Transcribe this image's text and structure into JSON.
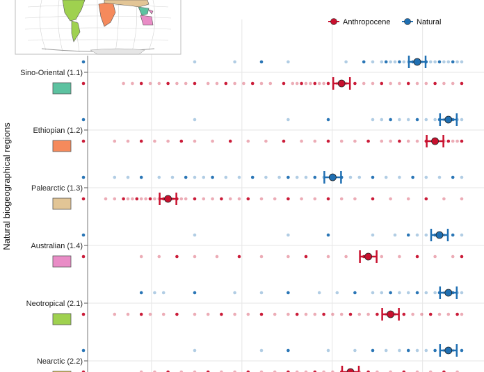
{
  "chart_data": {
    "type": "scatter",
    "ylabel": "Natural biogeographical regions",
    "grid": true,
    "x_tick_labels_visible": false,
    "legend": {
      "placement": "top-right",
      "entries": [
        {
          "name": "Anthropocene",
          "color": "#c8102e"
        },
        {
          "name": "Natural",
          "color": "#1f6fb2"
        }
      ]
    },
    "regions": [
      {
        "label": "Sino-Oriental (1.1)",
        "swatch_color": "#5cc2a0",
        "natural_mean": 0.8,
        "anthropocene_mean": 0.63,
        "natural_points": [
          0.05,
          0.3,
          0.39,
          0.45,
          0.51,
          0.64,
          0.68,
          0.7,
          0.72,
          0.73,
          0.74,
          0.75,
          0.76,
          0.77,
          0.78,
          0.79,
          0.8,
          0.81,
          0.82,
          0.83,
          0.84,
          0.85,
          0.86,
          0.87,
          0.88,
          0.89,
          0.9
        ],
        "anthropocene_points": [
          0.05,
          0.14,
          0.16,
          0.18,
          0.2,
          0.22,
          0.24,
          0.26,
          0.28,
          0.3,
          0.33,
          0.35,
          0.37,
          0.39,
          0.41,
          0.43,
          0.45,
          0.47,
          0.5,
          0.52,
          0.53,
          0.54,
          0.55,
          0.56,
          0.57,
          0.58,
          0.59,
          0.6,
          0.62,
          0.64,
          0.66,
          0.68,
          0.7,
          0.72,
          0.74,
          0.76,
          0.78,
          0.8,
          0.82,
          0.84,
          0.86,
          0.88,
          0.9
        ]
      },
      {
        "label": "Ethiopian (1.2)",
        "swatch_color": "#f58a5c",
        "natural_mean": 0.87,
        "anthropocene_mean": 0.84,
        "natural_points": [
          0.05,
          0.3,
          0.51,
          0.6,
          0.7,
          0.72,
          0.74,
          0.76,
          0.78,
          0.8,
          0.82,
          0.84,
          0.85,
          0.86,
          0.87,
          0.88,
          0.89,
          0.9
        ],
        "anthropocene_points": [
          0.05,
          0.12,
          0.15,
          0.18,
          0.21,
          0.24,
          0.27,
          0.3,
          0.34,
          0.38,
          0.42,
          0.46,
          0.5,
          0.54,
          0.57,
          0.6,
          0.63,
          0.66,
          0.69,
          0.72,
          0.74,
          0.76,
          0.78,
          0.8,
          0.82,
          0.84,
          0.86,
          0.87,
          0.88,
          0.89,
          0.9
        ]
      },
      {
        "label": "Palearctic (1.3)",
        "swatch_color": "#e2c596",
        "natural_mean": 0.61,
        "anthropocene_mean": 0.24,
        "natural_points": [
          0.05,
          0.12,
          0.15,
          0.18,
          0.22,
          0.25,
          0.28,
          0.3,
          0.32,
          0.34,
          0.37,
          0.4,
          0.43,
          0.46,
          0.49,
          0.51,
          0.53,
          0.55,
          0.57,
          0.59,
          0.61,
          0.63,
          0.65,
          0.67,
          0.7,
          0.73,
          0.76,
          0.79,
          0.82,
          0.85,
          0.88,
          0.9
        ],
        "anthropocene_points": [
          0.05,
          0.1,
          0.12,
          0.14,
          0.15,
          0.16,
          0.17,
          0.18,
          0.19,
          0.2,
          0.21,
          0.22,
          0.23,
          0.24,
          0.25,
          0.26,
          0.27,
          0.28,
          0.3,
          0.32,
          0.34,
          0.36,
          0.38,
          0.4,
          0.42,
          0.45,
          0.48,
          0.51,
          0.54,
          0.57,
          0.6,
          0.63,
          0.66,
          0.7,
          0.74,
          0.78,
          0.82,
          0.86,
          0.9
        ]
      },
      {
        "label": "Australian (1.4)",
        "swatch_color": "#e98cc6",
        "natural_mean": 0.85,
        "anthropocene_mean": 0.69,
        "natural_points": [
          0.05,
          0.3,
          0.51,
          0.6,
          0.7,
          0.75,
          0.78,
          0.8,
          0.82,
          0.84,
          0.85,
          0.86,
          0.88,
          0.9
        ],
        "anthropocene_points": [
          0.05,
          0.18,
          0.22,
          0.26,
          0.3,
          0.35,
          0.4,
          0.45,
          0.51,
          0.55,
          0.6,
          0.64,
          0.68,
          0.72,
          0.76,
          0.8,
          0.84,
          0.88,
          0.9
        ]
      },
      {
        "label": "Neotropical (2.1)",
        "swatch_color": "#9fd14f",
        "natural_mean": 0.87,
        "anthropocene_mean": 0.74,
        "natural_points": [
          0.18,
          0.21,
          0.23,
          0.3,
          0.39,
          0.45,
          0.51,
          0.58,
          0.62,
          0.66,
          0.7,
          0.72,
          0.74,
          0.76,
          0.78,
          0.8,
          0.82,
          0.84,
          0.85,
          0.86,
          0.87,
          0.88,
          0.89,
          0.9
        ],
        "anthropocene_points": [
          0.05,
          0.12,
          0.15,
          0.18,
          0.2,
          0.23,
          0.26,
          0.3,
          0.33,
          0.36,
          0.39,
          0.42,
          0.45,
          0.48,
          0.51,
          0.53,
          0.55,
          0.57,
          0.59,
          0.61,
          0.63,
          0.65,
          0.67,
          0.69,
          0.71,
          0.73,
          0.75,
          0.77,
          0.79,
          0.81,
          0.83,
          0.85,
          0.87,
          0.89,
          0.9
        ]
      },
      {
        "label": "Nearctic (2.2)",
        "swatch_color": "#e8c940",
        "natural_mean": 0.87,
        "anthropocene_mean": 0.65,
        "natural_points": [
          0.05,
          0.3,
          0.45,
          0.51,
          0.6,
          0.66,
          0.7,
          0.73,
          0.76,
          0.78,
          0.8,
          0.82,
          0.84,
          0.86,
          0.88,
          0.9
        ],
        "anthropocene_points": [
          0.05,
          0.18,
          0.21,
          0.24,
          0.27,
          0.3,
          0.33,
          0.36,
          0.39,
          0.42,
          0.45,
          0.48,
          0.51,
          0.53,
          0.55,
          0.57,
          0.59,
          0.61,
          0.63,
          0.65,
          0.67,
          0.69,
          0.71,
          0.74,
          0.77,
          0.8,
          0.83,
          0.86,
          0.89
        ]
      }
    ]
  }
}
